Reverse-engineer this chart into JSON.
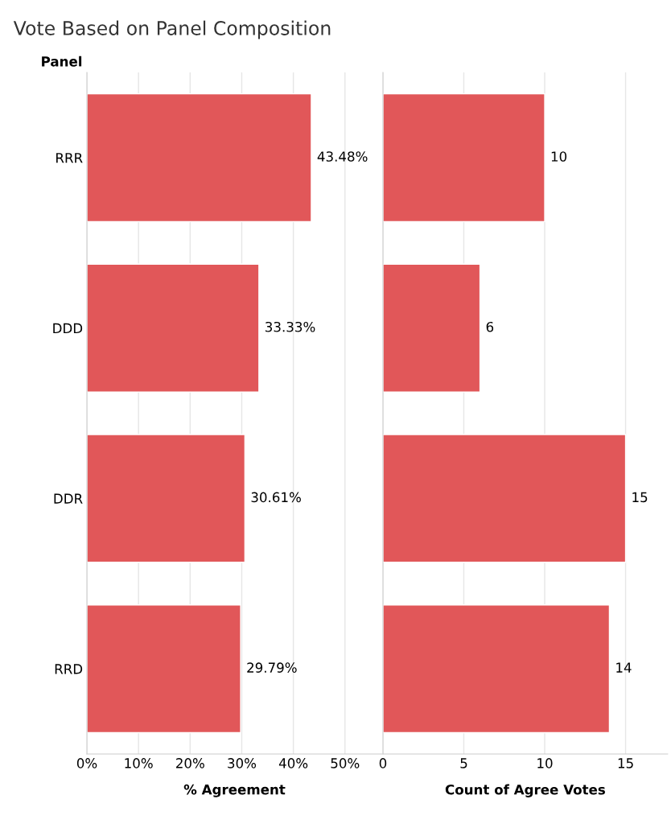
{
  "chart_data": [
    {
      "type": "bar",
      "orientation": "horizontal",
      "title": "Vote Based on Panel Composition",
      "ylabel": "Panel",
      "xlabel": "% Agreement",
      "categories": [
        "RRR",
        "DDD",
        "DDR",
        "RRD"
      ],
      "values": [
        43.48,
        33.33,
        30.61,
        29.79
      ],
      "color": "#e15759",
      "value_labels": [
        "43.48%",
        "33.33%",
        "30.61%",
        "29.79%"
      ],
      "xlim": [
        0,
        57.2
      ],
      "xticks": [
        {
          "value": 0,
          "label": "0%"
        },
        {
          "value": 10,
          "label": "10%"
        },
        {
          "value": 20,
          "label": "20%"
        },
        {
          "value": 30,
          "label": "30%"
        },
        {
          "value": 40,
          "label": "40%"
        },
        {
          "value": 50,
          "label": "50%"
        }
      ],
      "grid": "x"
    },
    {
      "type": "bar",
      "orientation": "horizontal",
      "xlabel": "Count of Agree Votes",
      "categories": [
        null,
        null,
        null,
        null
      ],
      "values": [
        10,
        6,
        15,
        14
      ],
      "color": "#e15759",
      "data_labels": true,
      "xlim": [
        0,
        17.6
      ],
      "xticks": [
        0,
        5,
        10,
        15
      ],
      "grid": "x",
      "tick_labels": "x"
    }
  ]
}
